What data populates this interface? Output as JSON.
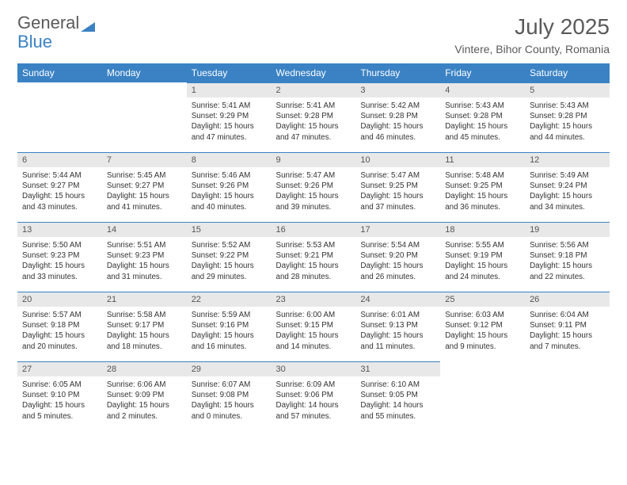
{
  "logo": {
    "text1": "General",
    "text2": "Blue"
  },
  "title": "July 2025",
  "location": "Vintere, Bihor County, Romania",
  "colors": {
    "header_bg": "#3a82c4",
    "header_text": "#ffffff",
    "daynum_bg": "#e8e8e8",
    "daynum_border": "#3a82c4",
    "body_bg": "#ffffff",
    "text": "#333333",
    "logo_gray": "#5a5a5a",
    "logo_blue": "#3a82c4"
  },
  "day_headers": [
    "Sunday",
    "Monday",
    "Tuesday",
    "Wednesday",
    "Thursday",
    "Friday",
    "Saturday"
  ],
  "weeks": [
    [
      {
        "empty": true
      },
      {
        "empty": true
      },
      {
        "num": "1",
        "sunrise": "Sunrise: 5:41 AM",
        "sunset": "Sunset: 9:29 PM",
        "daylight": "Daylight: 15 hours and 47 minutes."
      },
      {
        "num": "2",
        "sunrise": "Sunrise: 5:41 AM",
        "sunset": "Sunset: 9:28 PM",
        "daylight": "Daylight: 15 hours and 47 minutes."
      },
      {
        "num": "3",
        "sunrise": "Sunrise: 5:42 AM",
        "sunset": "Sunset: 9:28 PM",
        "daylight": "Daylight: 15 hours and 46 minutes."
      },
      {
        "num": "4",
        "sunrise": "Sunrise: 5:43 AM",
        "sunset": "Sunset: 9:28 PM",
        "daylight": "Daylight: 15 hours and 45 minutes."
      },
      {
        "num": "5",
        "sunrise": "Sunrise: 5:43 AM",
        "sunset": "Sunset: 9:28 PM",
        "daylight": "Daylight: 15 hours and 44 minutes."
      }
    ],
    [
      {
        "num": "6",
        "sunrise": "Sunrise: 5:44 AM",
        "sunset": "Sunset: 9:27 PM",
        "daylight": "Daylight: 15 hours and 43 minutes."
      },
      {
        "num": "7",
        "sunrise": "Sunrise: 5:45 AM",
        "sunset": "Sunset: 9:27 PM",
        "daylight": "Daylight: 15 hours and 41 minutes."
      },
      {
        "num": "8",
        "sunrise": "Sunrise: 5:46 AM",
        "sunset": "Sunset: 9:26 PM",
        "daylight": "Daylight: 15 hours and 40 minutes."
      },
      {
        "num": "9",
        "sunrise": "Sunrise: 5:47 AM",
        "sunset": "Sunset: 9:26 PM",
        "daylight": "Daylight: 15 hours and 39 minutes."
      },
      {
        "num": "10",
        "sunrise": "Sunrise: 5:47 AM",
        "sunset": "Sunset: 9:25 PM",
        "daylight": "Daylight: 15 hours and 37 minutes."
      },
      {
        "num": "11",
        "sunrise": "Sunrise: 5:48 AM",
        "sunset": "Sunset: 9:25 PM",
        "daylight": "Daylight: 15 hours and 36 minutes."
      },
      {
        "num": "12",
        "sunrise": "Sunrise: 5:49 AM",
        "sunset": "Sunset: 9:24 PM",
        "daylight": "Daylight: 15 hours and 34 minutes."
      }
    ],
    [
      {
        "num": "13",
        "sunrise": "Sunrise: 5:50 AM",
        "sunset": "Sunset: 9:23 PM",
        "daylight": "Daylight: 15 hours and 33 minutes."
      },
      {
        "num": "14",
        "sunrise": "Sunrise: 5:51 AM",
        "sunset": "Sunset: 9:23 PM",
        "daylight": "Daylight: 15 hours and 31 minutes."
      },
      {
        "num": "15",
        "sunrise": "Sunrise: 5:52 AM",
        "sunset": "Sunset: 9:22 PM",
        "daylight": "Daylight: 15 hours and 29 minutes."
      },
      {
        "num": "16",
        "sunrise": "Sunrise: 5:53 AM",
        "sunset": "Sunset: 9:21 PM",
        "daylight": "Daylight: 15 hours and 28 minutes."
      },
      {
        "num": "17",
        "sunrise": "Sunrise: 5:54 AM",
        "sunset": "Sunset: 9:20 PM",
        "daylight": "Daylight: 15 hours and 26 minutes."
      },
      {
        "num": "18",
        "sunrise": "Sunrise: 5:55 AM",
        "sunset": "Sunset: 9:19 PM",
        "daylight": "Daylight: 15 hours and 24 minutes."
      },
      {
        "num": "19",
        "sunrise": "Sunrise: 5:56 AM",
        "sunset": "Sunset: 9:18 PM",
        "daylight": "Daylight: 15 hours and 22 minutes."
      }
    ],
    [
      {
        "num": "20",
        "sunrise": "Sunrise: 5:57 AM",
        "sunset": "Sunset: 9:18 PM",
        "daylight": "Daylight: 15 hours and 20 minutes."
      },
      {
        "num": "21",
        "sunrise": "Sunrise: 5:58 AM",
        "sunset": "Sunset: 9:17 PM",
        "daylight": "Daylight: 15 hours and 18 minutes."
      },
      {
        "num": "22",
        "sunrise": "Sunrise: 5:59 AM",
        "sunset": "Sunset: 9:16 PM",
        "daylight": "Daylight: 15 hours and 16 minutes."
      },
      {
        "num": "23",
        "sunrise": "Sunrise: 6:00 AM",
        "sunset": "Sunset: 9:15 PM",
        "daylight": "Daylight: 15 hours and 14 minutes."
      },
      {
        "num": "24",
        "sunrise": "Sunrise: 6:01 AM",
        "sunset": "Sunset: 9:13 PM",
        "daylight": "Daylight: 15 hours and 11 minutes."
      },
      {
        "num": "25",
        "sunrise": "Sunrise: 6:03 AM",
        "sunset": "Sunset: 9:12 PM",
        "daylight": "Daylight: 15 hours and 9 minutes."
      },
      {
        "num": "26",
        "sunrise": "Sunrise: 6:04 AM",
        "sunset": "Sunset: 9:11 PM",
        "daylight": "Daylight: 15 hours and 7 minutes."
      }
    ],
    [
      {
        "num": "27",
        "sunrise": "Sunrise: 6:05 AM",
        "sunset": "Sunset: 9:10 PM",
        "daylight": "Daylight: 15 hours and 5 minutes."
      },
      {
        "num": "28",
        "sunrise": "Sunrise: 6:06 AM",
        "sunset": "Sunset: 9:09 PM",
        "daylight": "Daylight: 15 hours and 2 minutes."
      },
      {
        "num": "29",
        "sunrise": "Sunrise: 6:07 AM",
        "sunset": "Sunset: 9:08 PM",
        "daylight": "Daylight: 15 hours and 0 minutes."
      },
      {
        "num": "30",
        "sunrise": "Sunrise: 6:09 AM",
        "sunset": "Sunset: 9:06 PM",
        "daylight": "Daylight: 14 hours and 57 minutes."
      },
      {
        "num": "31",
        "sunrise": "Sunrise: 6:10 AM",
        "sunset": "Sunset: 9:05 PM",
        "daylight": "Daylight: 14 hours and 55 minutes."
      },
      {
        "empty": true
      },
      {
        "empty": true
      }
    ]
  ]
}
